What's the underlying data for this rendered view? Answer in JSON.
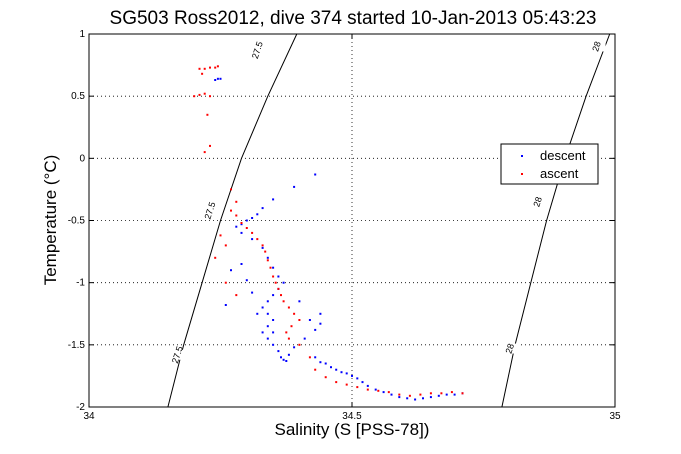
{
  "chart_data": {
    "type": "scatter",
    "title": "SG503 Ross2012, dive 374 started 10-Jan-2013 05:43:23",
    "xlabel": "Salinity (S [PSS-78])",
    "ylabel": "Temperature (°C)",
    "xlim": [
      34,
      35
    ],
    "ylim": [
      -2,
      1
    ],
    "grid": true,
    "legend_position": "right",
    "x_ticks": [
      {
        "value": 34,
        "label": "34"
      },
      {
        "value": 34.5,
        "label": "34.5"
      },
      {
        "value": 35,
        "label": "35"
      }
    ],
    "y_ticks": [
      {
        "value": -2,
        "label": "-2"
      },
      {
        "value": -1.5,
        "label": "-1.5"
      },
      {
        "value": -1,
        "label": "-1"
      },
      {
        "value": -0.5,
        "label": "-0.5"
      },
      {
        "value": 0,
        "label": "0"
      },
      {
        "value": 0.5,
        "label": "0.5"
      },
      {
        "value": 1,
        "label": "1"
      }
    ],
    "contours": [
      {
        "label": "27.5",
        "color": "#000000",
        "points": [
          [
            34.15,
            -2
          ],
          [
            34.18,
            -1.5
          ],
          [
            34.215,
            -1
          ],
          [
            34.25,
            -0.5
          ],
          [
            34.29,
            0
          ],
          [
            34.34,
            0.5
          ],
          [
            34.395,
            1
          ]
        ],
        "labels_at": [
          [
            34.168,
            -1.58
          ],
          [
            34.23,
            -0.42
          ],
          [
            34.32,
            0.87
          ]
        ]
      },
      {
        "label": "28",
        "color": "#000000",
        "points": [
          [
            34.785,
            -2
          ],
          [
            34.81,
            -1.5
          ],
          [
            34.84,
            -1
          ],
          [
            34.87,
            -0.5
          ],
          [
            34.905,
            0
          ],
          [
            34.945,
            0.5
          ],
          [
            34.99,
            1
          ]
        ],
        "labels_at": [
          [
            34.8,
            -1.53
          ],
          [
            34.853,
            -0.35
          ],
          [
            34.965,
            0.9
          ]
        ]
      }
    ],
    "series": [
      {
        "name": "descent",
        "color": "#0000ff",
        "points": [
          [
            34.24,
            0.63
          ],
          [
            34.245,
            0.64
          ],
          [
            34.25,
            0.64
          ],
          [
            34.43,
            -0.13
          ],
          [
            34.39,
            -0.23
          ],
          [
            34.35,
            -0.33
          ],
          [
            34.33,
            -0.4
          ],
          [
            34.32,
            -0.45
          ],
          [
            34.31,
            -0.48
          ],
          [
            34.3,
            -0.5
          ],
          [
            34.29,
            -0.53
          ],
          [
            34.28,
            -0.55
          ],
          [
            34.29,
            -0.6
          ],
          [
            34.31,
            -0.65
          ],
          [
            34.33,
            -0.72
          ],
          [
            34.34,
            -0.8
          ],
          [
            34.35,
            -0.88
          ],
          [
            34.36,
            -0.95
          ],
          [
            34.37,
            -1.0
          ],
          [
            34.36,
            -1.05
          ],
          [
            34.35,
            -1.1
          ],
          [
            34.34,
            -1.15
          ],
          [
            34.33,
            -1.2
          ],
          [
            34.34,
            -1.25
          ],
          [
            34.35,
            -1.3
          ],
          [
            34.34,
            -1.35
          ],
          [
            34.35,
            -1.4
          ],
          [
            34.34,
            -1.45
          ],
          [
            34.35,
            -1.5
          ],
          [
            34.36,
            -1.55
          ],
          [
            34.365,
            -1.6
          ],
          [
            34.37,
            -1.62
          ],
          [
            34.375,
            -1.63
          ],
          [
            34.38,
            -1.58
          ],
          [
            34.39,
            -1.52
          ],
          [
            34.41,
            -1.45
          ],
          [
            34.43,
            -1.38
          ],
          [
            34.44,
            -1.33
          ],
          [
            34.43,
            -1.6
          ],
          [
            34.44,
            -1.64
          ],
          [
            34.45,
            -1.65
          ],
          [
            34.46,
            -1.68
          ],
          [
            34.47,
            -1.7
          ],
          [
            34.48,
            -1.72
          ],
          [
            34.49,
            -1.73
          ],
          [
            34.5,
            -1.75
          ],
          [
            34.51,
            -1.77
          ],
          [
            34.52,
            -1.8
          ],
          [
            34.53,
            -1.83
          ],
          [
            34.545,
            -1.86
          ],
          [
            34.56,
            -1.88
          ],
          [
            34.575,
            -1.9
          ],
          [
            34.59,
            -1.92
          ],
          [
            34.605,
            -1.93
          ],
          [
            34.62,
            -1.94
          ],
          [
            34.635,
            -1.93
          ],
          [
            34.65,
            -1.92
          ],
          [
            34.665,
            -1.91
          ],
          [
            34.68,
            -1.9
          ],
          [
            34.695,
            -1.9
          ],
          [
            34.71,
            -1.89
          ],
          [
            34.29,
            -0.85
          ],
          [
            34.3,
            -0.98
          ],
          [
            34.31,
            -1.08
          ],
          [
            34.32,
            -1.25
          ],
          [
            34.33,
            -1.4
          ],
          [
            34.42,
            -1.3
          ],
          [
            34.44,
            -1.25
          ],
          [
            34.26,
            -1.18
          ],
          [
            34.27,
            -0.9
          ],
          [
            34.4,
            -1.15
          ]
        ]
      },
      {
        "name": "ascent",
        "color": "#ff0000",
        "points": [
          [
            34.21,
            0.72
          ],
          [
            34.22,
            0.72
          ],
          [
            34.23,
            0.73
          ],
          [
            34.24,
            0.73
          ],
          [
            34.245,
            0.74
          ],
          [
            34.215,
            0.68
          ],
          [
            34.2,
            0.5
          ],
          [
            34.21,
            0.51
          ],
          [
            34.22,
            0.52
          ],
          [
            34.23,
            0.5
          ],
          [
            34.225,
            0.35
          ],
          [
            34.22,
            0.05
          ],
          [
            34.23,
            0.1
          ],
          [
            34.27,
            -0.25
          ],
          [
            34.28,
            -0.35
          ],
          [
            34.27,
            -0.42
          ],
          [
            34.28,
            -0.46
          ],
          [
            34.29,
            -0.52
          ],
          [
            34.3,
            -0.56
          ],
          [
            34.31,
            -0.6
          ],
          [
            34.32,
            -0.65
          ],
          [
            34.33,
            -0.7
          ],
          [
            34.335,
            -0.75
          ],
          [
            34.34,
            -0.82
          ],
          [
            34.345,
            -0.88
          ],
          [
            34.35,
            -0.95
          ],
          [
            34.355,
            -1.0
          ],
          [
            34.36,
            -1.05
          ],
          [
            34.365,
            -1.1
          ],
          [
            34.37,
            -1.15
          ],
          [
            34.38,
            -1.2
          ],
          [
            34.39,
            -1.25
          ],
          [
            34.4,
            -1.3
          ],
          [
            34.385,
            -1.35
          ],
          [
            34.375,
            -1.4
          ],
          [
            34.38,
            -1.45
          ],
          [
            34.4,
            -1.5
          ],
          [
            34.42,
            -1.6
          ],
          [
            34.43,
            -1.7
          ],
          [
            34.45,
            -1.76
          ],
          [
            34.47,
            -1.8
          ],
          [
            34.49,
            -1.82
          ],
          [
            34.51,
            -1.84
          ],
          [
            34.53,
            -1.86
          ],
          [
            34.55,
            -1.87
          ],
          [
            34.57,
            -1.88
          ],
          [
            34.59,
            -1.9
          ],
          [
            34.61,
            -1.91
          ],
          [
            34.63,
            -1.9
          ],
          [
            34.65,
            -1.89
          ],
          [
            34.67,
            -1.89
          ],
          [
            34.69,
            -1.88
          ],
          [
            34.71,
            -1.89
          ],
          [
            34.25,
            -0.62
          ],
          [
            34.26,
            -0.7
          ],
          [
            34.24,
            -0.8
          ],
          [
            34.26,
            -1.0
          ],
          [
            34.28,
            -1.1
          ]
        ]
      }
    ]
  }
}
